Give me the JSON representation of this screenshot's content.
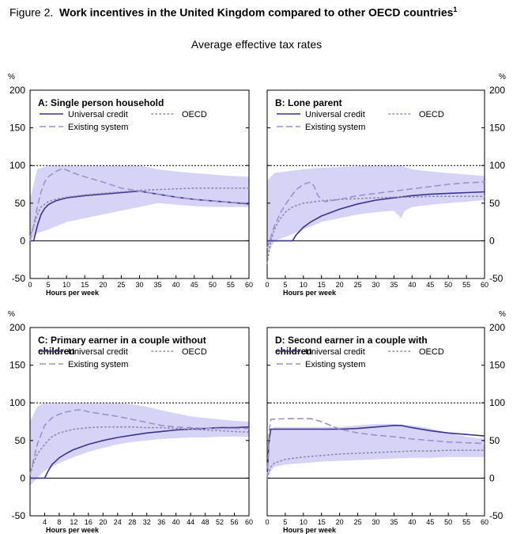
{
  "figure": {
    "label": "Figure 2.",
    "title": "Work incentives in the United Kingdom compared to other OECD countries",
    "footnote_mark": "1",
    "subtitle": "Average effective tax rates"
  },
  "colors": {
    "uc": "#3a3391",
    "oecd": "#8d8aaa",
    "existing": "#9a93c8",
    "band": "#d6d3f7"
  },
  "chart_data": [
    {
      "type": "line",
      "title": "A: Single person household",
      "xlabel": "Hours per week",
      "ylabel_unit": "%",
      "xlim": [
        0,
        60
      ],
      "ylim": [
        -50,
        200
      ],
      "xticks": [
        0,
        5,
        10,
        15,
        20,
        25,
        30,
        35,
        40,
        45,
        50,
        55,
        60
      ],
      "yticks": [
        -50,
        0,
        50,
        100,
        150,
        200
      ],
      "reference_line": 100,
      "legend": [
        "Universal credit",
        "OECD",
        "Existing system"
      ],
      "series": [
        {
          "name": "Universal credit",
          "style": "solid",
          "x": [
            0,
            1,
            2,
            3,
            4,
            5,
            7,
            10,
            15,
            20,
            25,
            30,
            35,
            40,
            45,
            50,
            55,
            60
          ],
          "y": [
            0,
            0,
            20,
            35,
            43,
            48,
            53,
            57,
            60,
            62,
            64,
            66,
            62,
            58,
            55,
            53,
            51,
            49
          ]
        },
        {
          "name": "OECD",
          "style": "dotted",
          "x": [
            0,
            1,
            2,
            3,
            5,
            7,
            10,
            15,
            20,
            25,
            30,
            35,
            40,
            45,
            50,
            55,
            60
          ],
          "y": [
            5,
            20,
            35,
            45,
            52,
            55,
            58,
            61,
            63,
            65,
            67,
            68,
            69,
            70,
            70,
            70,
            70
          ]
        },
        {
          "name": "Existing system",
          "style": "dashed",
          "x": [
            0,
            1,
            2,
            3,
            4,
            5,
            7,
            9,
            12,
            15,
            20,
            25,
            30,
            35,
            40,
            45,
            50,
            55,
            60
          ],
          "y": [
            0,
            20,
            45,
            65,
            78,
            85,
            92,
            96,
            90,
            85,
            78,
            70,
            66,
            62,
            58,
            55,
            53,
            51,
            50
          ]
        }
      ],
      "band": {
        "x": [
          0,
          2,
          5,
          10,
          15,
          20,
          25,
          30,
          35,
          40,
          45,
          50,
          55,
          60
        ],
        "lower": [
          0,
          10,
          15,
          25,
          30,
          35,
          40,
          45,
          50,
          48,
          46,
          45,
          45,
          45
        ],
        "upper": [
          55,
          95,
          100,
          100,
          100,
          100,
          100,
          100,
          95,
          92,
          90,
          88,
          86,
          85
        ]
      }
    },
    {
      "type": "line",
      "title": "B: Lone parent",
      "xlabel": "Hours per week",
      "ylabel_unit": "%",
      "xlim": [
        0,
        60
      ],
      "ylim": [
        -50,
        200
      ],
      "xticks": [
        0,
        5,
        10,
        15,
        20,
        25,
        30,
        35,
        40,
        45,
        50,
        55,
        60
      ],
      "yticks": [
        -50,
        0,
        50,
        100,
        150,
        200
      ],
      "reference_line": 100,
      "legend": [
        "Universal credit",
        "OECD",
        "Existing system"
      ],
      "series": [
        {
          "name": "Universal credit",
          "style": "solid",
          "x": [
            0,
            7,
            8,
            10,
            12,
            15,
            20,
            25,
            30,
            35,
            40,
            45,
            50,
            55,
            60
          ],
          "y": [
            0,
            0,
            8,
            18,
            25,
            33,
            42,
            49,
            54,
            57,
            60,
            62,
            63,
            64,
            65
          ]
        },
        {
          "name": "OECD",
          "style": "dotted",
          "x": [
            0,
            1,
            2,
            3,
            5,
            7,
            10,
            15,
            20,
            25,
            30,
            35,
            40,
            45,
            50,
            55,
            60
          ],
          "y": [
            -30,
            0,
            15,
            25,
            38,
            45,
            50,
            53,
            55,
            56,
            57,
            58,
            58,
            59,
            59,
            59,
            59
          ]
        },
        {
          "name": "Existing system",
          "style": "dashed",
          "x": [
            0,
            1,
            2,
            4,
            6,
            8,
            10,
            12,
            13,
            14,
            15,
            16,
            20,
            25,
            30,
            35,
            40,
            45,
            50,
            55,
            60
          ],
          "y": [
            -10,
            5,
            20,
            40,
            55,
            68,
            75,
            78,
            72,
            60,
            55,
            52,
            55,
            60,
            63,
            66,
            69,
            72,
            75,
            77,
            78
          ]
        }
      ],
      "band": {
        "x": [
          0,
          2,
          5,
          10,
          15,
          20,
          25,
          30,
          35,
          37,
          38,
          40,
          45,
          50,
          55,
          60
        ],
        "lower": [
          -20,
          0,
          5,
          15,
          25,
          30,
          35,
          38,
          40,
          30,
          40,
          45,
          48,
          50,
          52,
          54
        ],
        "upper": [
          80,
          90,
          92,
          95,
          97,
          98,
          99,
          100,
          100,
          100,
          98,
          95,
          92,
          90,
          88,
          86
        ]
      }
    },
    {
      "type": "line",
      "title": "C: Primary earner in a couple without children",
      "xlabel": "Hours per week",
      "ylabel_unit": "%",
      "xlim": [
        0,
        60
      ],
      "ylim": [
        -50,
        200
      ],
      "xticks": [
        4,
        8,
        12,
        16,
        20,
        24,
        28,
        32,
        36,
        40,
        44,
        48,
        52,
        56,
        60
      ],
      "yticks": [
        -50,
        0,
        50,
        100,
        150,
        200
      ],
      "reference_line": 100,
      "legend": [
        "Universal credit",
        "OECD",
        "Existing system"
      ],
      "series": [
        {
          "name": "Universal credit",
          "style": "solid",
          "x": [
            0,
            4,
            5,
            6,
            8,
            10,
            12,
            16,
            20,
            24,
            28,
            32,
            36,
            40,
            44,
            48,
            52,
            56,
            60
          ],
          "y": [
            0,
            0,
            10,
            18,
            27,
            33,
            38,
            45,
            50,
            54,
            57,
            60,
            62,
            64,
            65,
            66,
            67,
            67,
            68
          ]
        },
        {
          "name": "OECD",
          "style": "dotted",
          "x": [
            0,
            1,
            2,
            4,
            6,
            8,
            12,
            16,
            20,
            24,
            28,
            32,
            36,
            40,
            44,
            48,
            52,
            56,
            60
          ],
          "y": [
            5,
            20,
            32,
            45,
            55,
            60,
            65,
            67,
            68,
            68,
            68,
            67,
            67,
            66,
            65,
            64,
            63,
            62,
            61
          ]
        },
        {
          "name": "Existing system",
          "style": "dashed",
          "x": [
            0,
            1,
            2,
            4,
            6,
            8,
            10,
            12,
            14,
            16,
            20,
            24,
            28,
            32,
            36,
            40,
            44,
            48,
            52,
            56,
            60
          ],
          "y": [
            5,
            25,
            45,
            70,
            80,
            85,
            88,
            90,
            91,
            88,
            85,
            82,
            78,
            74,
            70,
            68,
            67,
            66,
            66,
            66,
            66
          ]
        }
      ],
      "band": {
        "x": [
          0,
          2,
          4,
          8,
          12,
          16,
          20,
          24,
          28,
          32,
          36,
          40,
          44,
          48,
          52,
          56,
          60
        ],
        "lower": [
          -10,
          0,
          10,
          20,
          28,
          35,
          40,
          45,
          48,
          50,
          52,
          53,
          54,
          54,
          55,
          55,
          55
        ],
        "upper": [
          75,
          95,
          100,
          100,
          100,
          100,
          100,
          100,
          98,
          95,
          90,
          86,
          82,
          80,
          78,
          76,
          75
        ]
      }
    },
    {
      "type": "line",
      "title": "D: Second earner in a couple with children",
      "xlabel": "Hours per week",
      "ylabel_unit": "%",
      "xlim": [
        0,
        60
      ],
      "ylim": [
        -50,
        200
      ],
      "xticks": [
        0,
        5,
        10,
        15,
        20,
        25,
        30,
        35,
        40,
        45,
        50,
        55,
        60
      ],
      "yticks": [
        -50,
        0,
        50,
        100,
        150,
        200
      ],
      "reference_line": 100,
      "legend": [
        "Universal credit",
        "OECD",
        "Existing system"
      ],
      "series": [
        {
          "name": "Universal credit",
          "style": "solid",
          "x": [
            0,
            0.5,
            1,
            5,
            10,
            15,
            20,
            25,
            30,
            35,
            37,
            40,
            45,
            50,
            55,
            60
          ],
          "y": [
            0,
            50,
            65,
            65,
            65,
            65,
            65,
            66,
            68,
            70,
            70,
            67,
            63,
            60,
            58,
            56
          ]
        },
        {
          "name": "OECD",
          "style": "dotted",
          "x": [
            0,
            1,
            2,
            5,
            10,
            15,
            20,
            25,
            30,
            35,
            40,
            45,
            50,
            55,
            60
          ],
          "y": [
            0,
            15,
            20,
            25,
            28,
            30,
            32,
            33,
            34,
            35,
            36,
            36,
            37,
            37,
            37
          ]
        },
        {
          "name": "Existing system",
          "style": "dashed",
          "x": [
            0,
            0.5,
            1,
            5,
            10,
            12,
            15,
            20,
            25,
            30,
            35,
            40,
            45,
            50,
            55,
            60
          ],
          "y": [
            0,
            60,
            78,
            79,
            79,
            79,
            75,
            65,
            60,
            57,
            55,
            52,
            50,
            48,
            47,
            46
          ]
        }
      ],
      "band": {
        "x": [
          0,
          1,
          2,
          5,
          10,
          15,
          20,
          25,
          30,
          35,
          40,
          45,
          50,
          55,
          60
        ],
        "lower": [
          0,
          10,
          15,
          18,
          20,
          22,
          23,
          24,
          25,
          26,
          27,
          27,
          28,
          28,
          28
        ],
        "upper": [
          0,
          65,
          68,
          68,
          68,
          68,
          68,
          70,
          72,
          72,
          70,
          66,
          60,
          55,
          52
        ]
      }
    }
  ]
}
